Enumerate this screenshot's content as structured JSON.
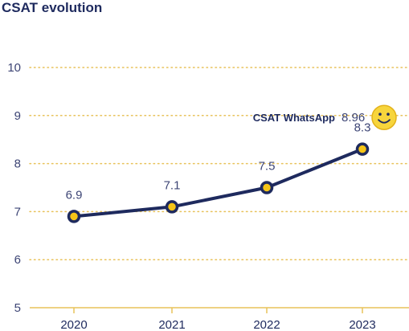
{
  "chart_data": {
    "type": "line",
    "title": "CSAT evolution",
    "x": [
      "2020",
      "2021",
      "2022",
      "2023"
    ],
    "series": [
      {
        "values": [
          6.9,
          7.1,
          7.5,
          8.3
        ],
        "labels": [
          "6.9",
          "7.1",
          "7.5",
          "8.3"
        ]
      }
    ],
    "yticks": [
      "5",
      "6",
      "7",
      "8",
      "9",
      "10"
    ],
    "ylim": [
      5,
      10
    ],
    "grid": true,
    "annotation": {
      "name": "CSAT WhatsApp",
      "value": 8.96,
      "value_label": "8.96",
      "icon": "smiley-face-icon"
    }
  },
  "colors": {
    "line": "#1e2a5e",
    "marker_fill": "#f5c518",
    "grid": "#e8c25a",
    "axis": "#e8c25a"
  }
}
